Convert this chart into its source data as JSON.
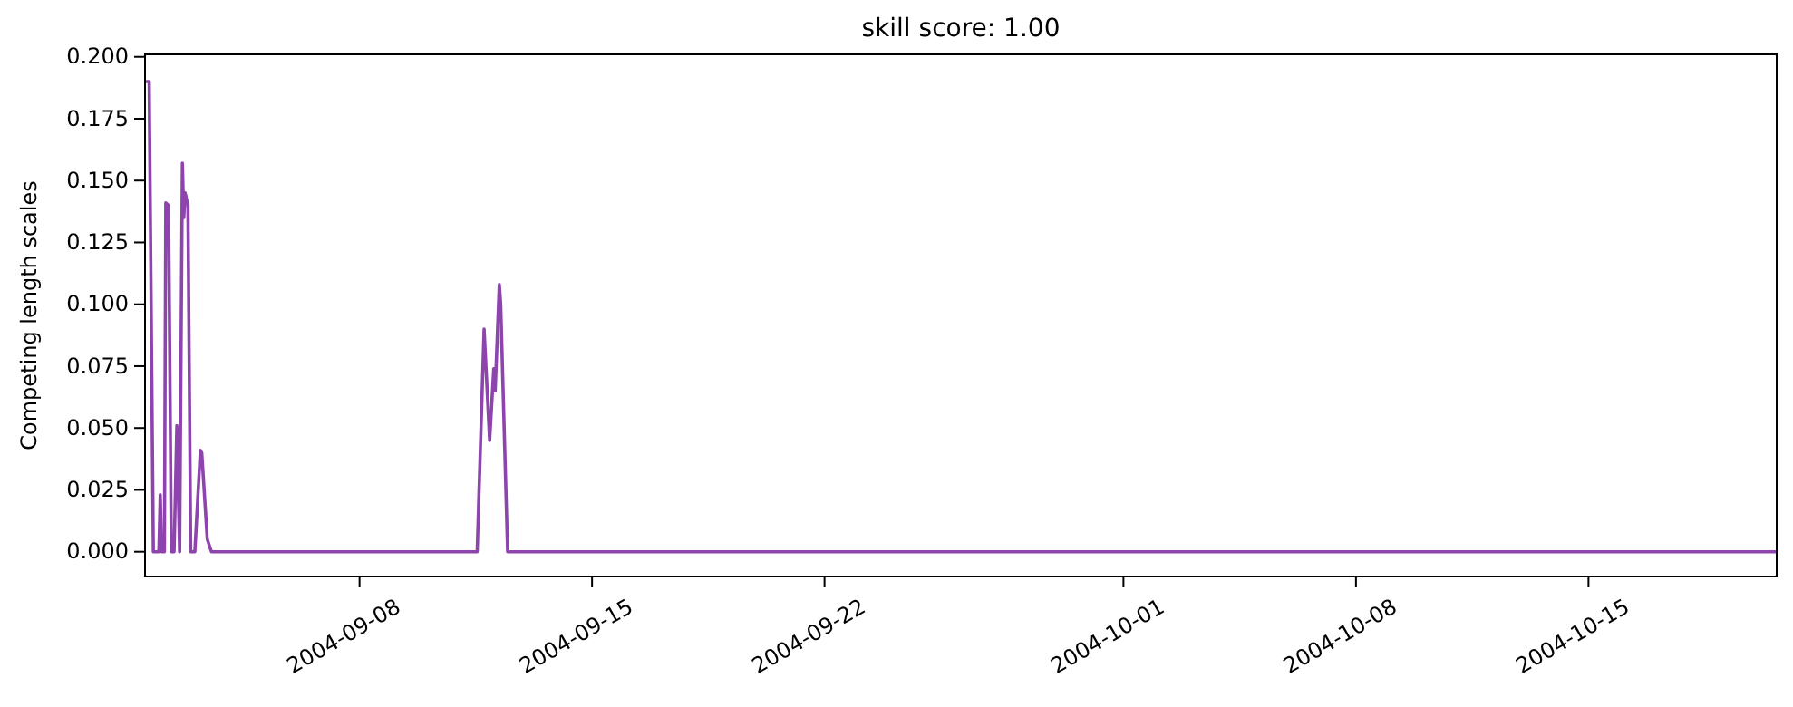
{
  "chart_data": {
    "type": "line",
    "title": "skill score: 1.00",
    "ylabel": "Competing length scales",
    "x": [
      "2004-09-01T14:00",
      "2004-09-01T16:00",
      "2004-09-01T19:00",
      "2004-09-01T23:00",
      "2004-09-02T00:00",
      "2004-09-02T01:00",
      "2004-09-02T03:00",
      "2004-09-02T04:00",
      "2004-09-02T06:00",
      "2004-09-02T08:00",
      "2004-09-02T10:00",
      "2004-09-02T12:00",
      "2004-09-02T14:00",
      "2004-09-02T16:00",
      "2004-09-02T17:00",
      "2004-09-02T18:00",
      "2004-09-02T20:00",
      "2004-09-02T22:00",
      "2004-09-03T01:00",
      "2004-09-03T05:00",
      "2004-09-03T06:00",
      "2004-09-03T10:00",
      "2004-09-03T13:00",
      "2004-09-11T13:00",
      "2004-09-11T18:00",
      "2004-09-11T22:00",
      "2004-09-12T01:00",
      "2004-09-12T02:00",
      "2004-09-12T05:00",
      "2004-09-12T06:00",
      "2004-09-12T11:00",
      "2004-10-20T16:00"
    ],
    "series": [
      {
        "color": "#8e44ad",
        "values": [
          0.19,
          0.19,
          0,
          0,
          0.023,
          0,
          0,
          0.141,
          0.14,
          0,
          0,
          0.051,
          0,
          0.157,
          0.135,
          0.145,
          0.14,
          0,
          0,
          0.041,
          0.04,
          0.005,
          0,
          0,
          0.09,
          0.045,
          0.074,
          0.065,
          0.108,
          0.1,
          0,
          0
        ]
      }
    ],
    "xlim": [
      "2004-09-01T13:00",
      "2004-10-20T16:00"
    ],
    "xticks": [
      {
        "value": "2004-09-08",
        "label": "2004-09-08"
      },
      {
        "value": "2004-09-15",
        "label": "2004-09-15"
      },
      {
        "value": "2004-09-22",
        "label": "2004-09-22"
      },
      {
        "value": "2004-10-01",
        "label": "2004-10-01"
      },
      {
        "value": "2004-10-08",
        "label": "2004-10-08"
      },
      {
        "value": "2004-10-15",
        "label": "2004-10-15"
      }
    ],
    "ylim": [
      -0.01,
      0.201
    ],
    "yticks": [
      {
        "value": 0,
        "label": "0.000"
      },
      {
        "value": 0.025,
        "label": "0.025"
      },
      {
        "value": 0.05,
        "label": "0.050"
      },
      {
        "value": 0.075,
        "label": "0.075"
      },
      {
        "value": 0.1,
        "label": "0.100"
      },
      {
        "value": 0.125,
        "label": "0.125"
      },
      {
        "value": 0.15,
        "label": "0.150"
      },
      {
        "value": 0.175,
        "label": "0.175"
      },
      {
        "value": 0.2,
        "label": "0.200"
      }
    ],
    "grid": false
  }
}
